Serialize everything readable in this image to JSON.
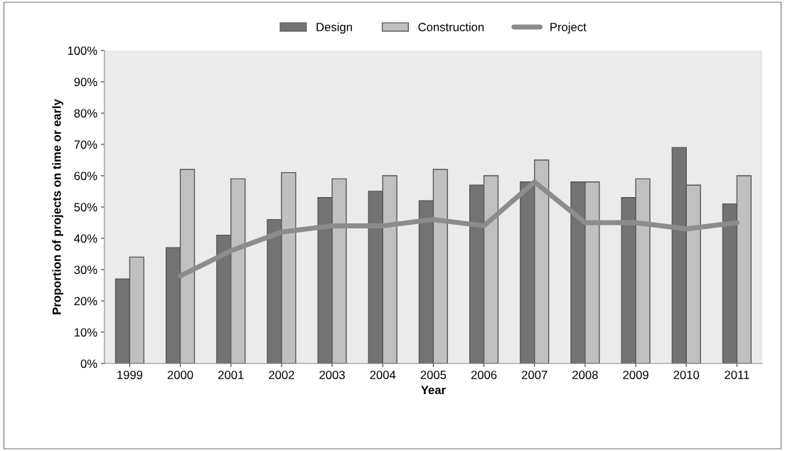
{
  "chart_data": {
    "type": "bar",
    "xlabel": "Year",
    "ylabel": "Proportion of projects on time or early",
    "categories": [
      "1999",
      "2000",
      "2001",
      "2002",
      "2003",
      "2004",
      "2005",
      "2006",
      "2007",
      "2008",
      "2009",
      "2010",
      "2011"
    ],
    "series": [
      {
        "name": "Design",
        "color": "#737373",
        "values": [
          27,
          37,
          41,
          46,
          53,
          55,
          52,
          57,
          58,
          58,
          53,
          69,
          51
        ]
      },
      {
        "name": "Construction",
        "color": "#c0c0c0",
        "values": [
          34,
          62,
          59,
          61,
          59,
          60,
          62,
          60,
          65,
          58,
          59,
          57,
          60
        ]
      },
      {
        "name": "Project",
        "type": "line",
        "color": "#8c8c8c",
        "values": [
          null,
          28,
          36,
          42,
          44,
          44,
          46,
          44,
          58,
          45,
          45,
          43,
          45
        ]
      }
    ],
    "ylim": [
      0,
      100
    ],
    "yticks": [
      {
        "value": 0,
        "label": "0%"
      },
      {
        "value": 10,
        "label": "10%"
      },
      {
        "value": 20,
        "label": "20%"
      },
      {
        "value": 30,
        "label": "30%"
      },
      {
        "value": 40,
        "label": "40%"
      },
      {
        "value": 50,
        "label": "50%"
      },
      {
        "value": 60,
        "label": "60%"
      },
      {
        "value": 70,
        "label": "70%"
      },
      {
        "value": 80,
        "label": "80%"
      },
      {
        "value": 90,
        "label": "90%"
      },
      {
        "value": 100,
        "label": "100%"
      }
    ],
    "legend": "top",
    "grid": false
  }
}
